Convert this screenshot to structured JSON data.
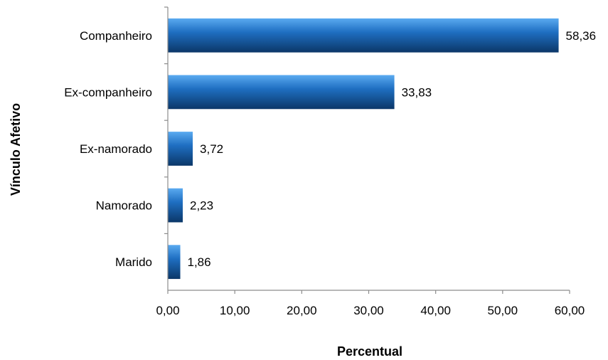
{
  "chart_data": {
    "type": "bar",
    "orientation": "horizontal",
    "categories": [
      "Companheiro",
      "Ex-companheiro",
      "Ex-namorado",
      "Namorado",
      "Marido"
    ],
    "values": [
      58.36,
      33.83,
      3.72,
      2.23,
      1.86
    ],
    "value_labels": [
      "58,36",
      "33,83",
      "3,72",
      "2,23",
      "1,86"
    ],
    "xlabel": "Percentual",
    "ylabel": "Vínculo Afetivo",
    "xlim": [
      0,
      60
    ],
    "xticks": [
      0,
      10,
      20,
      30,
      40,
      50,
      60
    ],
    "xtick_labels": [
      "0,00",
      "10,00",
      "20,00",
      "30,00",
      "40,00",
      "50,00",
      "60,00"
    ],
    "grid": false,
    "legend": "none",
    "bar_color": "#1f6fc2",
    "bar_color_light": "#5aaaf0",
    "bar_color_dark": "#0b3768"
  }
}
